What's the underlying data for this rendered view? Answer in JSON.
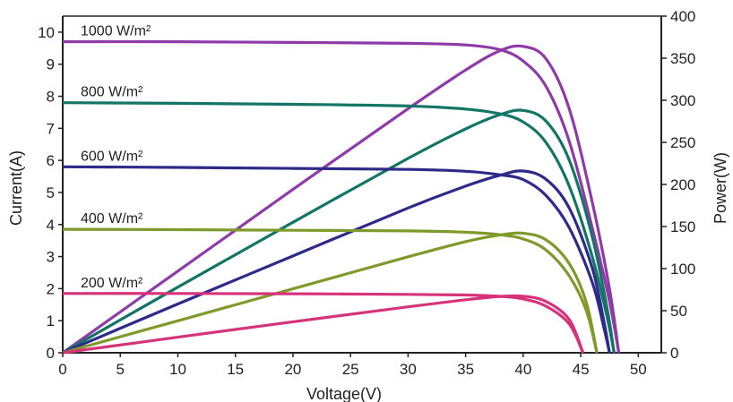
{
  "chart_data": {
    "type": "line",
    "title": "",
    "xlabel": "Voltage(V)",
    "ylabel_left": "Current(A)",
    "ylabel_right": "Power(W)",
    "xlim": [
      0,
      52
    ],
    "ylim_left": [
      0,
      10.5
    ],
    "ylim_right": [
      0,
      400
    ],
    "x_ticks": [
      0,
      5,
      10,
      15,
      20,
      25,
      30,
      35,
      40,
      45,
      50
    ],
    "y_left_ticks": [
      0,
      1,
      2,
      3,
      4,
      5,
      6,
      7,
      8,
      9,
      10
    ],
    "y_right_ticks": [
      0,
      50,
      100,
      150,
      200,
      250,
      300,
      350,
      400
    ],
    "grid": false,
    "series": [
      {
        "name": "1000 W/m²",
        "color": "#8e3aa8",
        "iv": {
          "x": [
            0,
            10,
            20,
            30,
            35,
            38,
            40,
            42,
            44,
            46,
            47.5,
            48.3
          ],
          "y": [
            9.7,
            9.7,
            9.68,
            9.65,
            9.6,
            9.45,
            9.1,
            8.3,
            6.6,
            3.9,
            1.6,
            0
          ]
        },
        "pv": {
          "x": [
            0,
            10,
            20,
            30,
            35,
            38,
            40,
            42,
            44,
            46,
            47.5,
            48.3
          ],
          "y": [
            0,
            97,
            194,
            290,
            336,
            359,
            364,
            349,
            290,
            179,
            76,
            0
          ]
        }
      },
      {
        "name": "800 W/m²",
        "color": "#137566",
        "iv": {
          "x": [
            0,
            10,
            20,
            30,
            35,
            38,
            40,
            42,
            44,
            46,
            47.3,
            47.9
          ],
          "y": [
            7.8,
            7.78,
            7.75,
            7.7,
            7.6,
            7.45,
            7.2,
            6.55,
            5.2,
            3.0,
            1.1,
            0
          ]
        },
        "pv": {
          "x": [
            0,
            10,
            20,
            30,
            35,
            38,
            40,
            42,
            44,
            46,
            47.3,
            47.9
          ],
          "y": [
            0,
            78,
            155,
            231,
            266,
            283,
            288,
            275,
            229,
            138,
            52,
            0
          ]
        }
      },
      {
        "name": "600 W/m²",
        "color": "#2e2a8a",
        "iv": {
          "x": [
            0,
            10,
            20,
            30,
            35,
            38,
            40,
            42,
            44,
            46,
            47.0,
            47.5
          ],
          "y": [
            5.8,
            5.78,
            5.75,
            5.72,
            5.66,
            5.55,
            5.4,
            4.9,
            3.9,
            2.2,
            0.8,
            0
          ]
        },
        "pv": {
          "x": [
            0,
            10,
            20,
            30,
            35,
            38,
            40,
            42,
            44,
            46,
            47.0,
            47.5
          ],
          "y": [
            0,
            58,
            115,
            172,
            198,
            211,
            216,
            206,
            172,
            101,
            38,
            0
          ]
        }
      },
      {
        "name": "400 W/m²",
        "color": "#7e9a2a",
        "iv": {
          "x": [
            0,
            10,
            20,
            30,
            35,
            38,
            40,
            42,
            44,
            45.5,
            46.4
          ],
          "y": [
            3.85,
            3.84,
            3.82,
            3.8,
            3.76,
            3.68,
            3.55,
            3.2,
            2.4,
            1.3,
            0
          ]
        },
        "pv": {
          "x": [
            0,
            10,
            20,
            30,
            35,
            38,
            40,
            42,
            44,
            45.5,
            46.4
          ],
          "y": [
            0,
            38,
            76,
            114,
            132,
            140,
            142,
            134,
            106,
            59,
            0
          ]
        }
      },
      {
        "name": "200 W/m²",
        "color": "#d6337a",
        "iv": {
          "x": [
            0,
            10,
            20,
            30,
            35,
            38,
            40,
            42,
            44,
            45.2
          ],
          "y": [
            1.85,
            1.85,
            1.84,
            1.82,
            1.8,
            1.76,
            1.68,
            1.45,
            0.9,
            0
          ]
        },
        "pv": {
          "x": [
            0,
            10,
            20,
            30,
            35,
            38,
            40,
            42,
            44,
            45.2
          ],
          "y": [
            0,
            18.5,
            36.8,
            54.6,
            63,
            66.9,
            67.2,
            60.9,
            39.6,
            0
          ]
        }
      }
    ]
  }
}
